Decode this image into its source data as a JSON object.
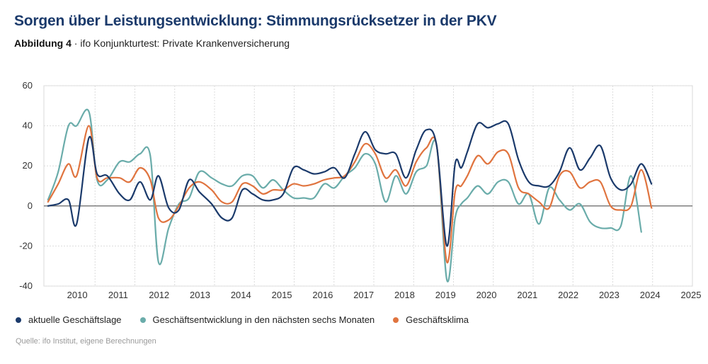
{
  "header": {
    "title": "Sorgen über Leistungsentwicklung: Stimmungsrücksetzer in der PKV",
    "figure_label": "Abbildung 4",
    "figure_separator": " · ",
    "figure_text": "ifo Konjunkturtest: Private Krankenversicherung"
  },
  "footer": {
    "source": "Quelle: ifo Institut, eigene Berechnungen"
  },
  "chart_data": {
    "type": "line",
    "title": "Sorgen über Leistungsentwicklung: Stimmungsrücksetzer in der PKV",
    "ylim": [
      -40,
      60
    ],
    "yticks": [
      -40,
      -20,
      0,
      20,
      40,
      60
    ],
    "xlim": [
      2009.65,
      2025.5
    ],
    "xtick_labels": [
      "2010",
      "2011",
      "2012",
      "2013",
      "2014",
      "2015",
      "2016",
      "2017",
      "2018",
      "2019",
      "2020",
      "2021",
      "2022",
      "2023",
      "2024",
      "2025"
    ],
    "grid": true,
    "legend_position": "bottom",
    "series": [
      {
        "name": "aktuelle Geschäftslage",
        "color": "#1b3a6b",
        "x": [
          2009.75,
          2010.0,
          2010.25,
          2010.45,
          2010.75,
          2010.95,
          2011.2,
          2011.5,
          2011.75,
          2012.0,
          2012.25,
          2012.45,
          2012.7,
          2012.95,
          2013.2,
          2013.45,
          2013.75,
          2014.0,
          2014.25,
          2014.5,
          2014.75,
          2015.0,
          2015.25,
          2015.5,
          2015.75,
          2016.0,
          2016.25,
          2016.5,
          2016.75,
          2017.0,
          2017.25,
          2017.5,
          2017.75,
          2018.0,
          2018.25,
          2018.5,
          2018.75,
          2019.0,
          2019.25,
          2019.5,
          2019.7,
          2019.85,
          2020.0,
          2020.25,
          2020.5,
          2020.75,
          2021.0,
          2021.25,
          2021.5,
          2021.75,
          2022.0,
          2022.25,
          2022.5,
          2022.75,
          2023.0,
          2023.25,
          2023.5,
          2023.75,
          2024.0,
          2024.25,
          2024.5,
          2024.75,
          2024.95
        ],
        "values": [
          0,
          1,
          3,
          -9,
          34,
          16,
          15,
          6,
          3,
          12,
          3,
          15,
          -1,
          -2,
          13,
          7,
          1,
          -6,
          -6,
          8,
          6,
          3,
          3,
          6,
          19,
          18,
          16,
          17,
          19,
          14,
          26,
          37,
          28,
          26,
          26,
          14,
          28,
          38,
          30,
          -20,
          21,
          19,
          27,
          41,
          39,
          41,
          41,
          23,
          12,
          10,
          10,
          17,
          29,
          18,
          24,
          30,
          14,
          8,
          11,
          21,
          11,
          null,
          null
        ],
        "values_end_note": ""
      },
      {
        "name": "Geschäftsentwicklung in den nächsten sechs Monaten",
        "color": "#6aacaa",
        "x": [
          2009.75,
          2010.0,
          2010.25,
          2010.45,
          2010.75,
          2010.95,
          2011.2,
          2011.5,
          2011.75,
          2012.0,
          2012.25,
          2012.45,
          2012.7,
          2012.95,
          2013.2,
          2013.45,
          2013.75,
          2014.0,
          2014.25,
          2014.5,
          2014.75,
          2015.0,
          2015.25,
          2015.5,
          2015.75,
          2016.0,
          2016.25,
          2016.5,
          2016.75,
          2017.0,
          2017.25,
          2017.5,
          2017.75,
          2018.0,
          2018.25,
          2018.5,
          2018.75,
          2019.0,
          2019.25,
          2019.5,
          2019.7,
          2019.85,
          2020.0,
          2020.25,
          2020.5,
          2020.75,
          2021.0,
          2021.25,
          2021.5,
          2021.75,
          2022.0,
          2022.25,
          2022.5,
          2022.75,
          2023.0,
          2023.25,
          2023.5,
          2023.75,
          2024.0,
          2024.25,
          2024.5,
          2024.75,
          2024.95
        ],
        "values": [
          3,
          17,
          40,
          40,
          47,
          13,
          13,
          22,
          22,
          26,
          25,
          -28,
          -11,
          1,
          4,
          17,
          14,
          11,
          10,
          15,
          15,
          9,
          13,
          8,
          4,
          4,
          4,
          11,
          9,
          15,
          19,
          26,
          21,
          2,
          15,
          6,
          17,
          20,
          30,
          -37,
          -6,
          1,
          4,
          10,
          6,
          12,
          12,
          1,
          6,
          -9,
          9,
          3,
          -2,
          1,
          -8,
          -11,
          -11,
          -10,
          15,
          -13,
          null,
          null,
          null
        ],
        "values_end_note": ""
      },
      {
        "name": "Geschäftsklima",
        "color": "#e0743f",
        "x": [
          2009.75,
          2010.0,
          2010.25,
          2010.45,
          2010.75,
          2010.95,
          2011.2,
          2011.5,
          2011.75,
          2012.0,
          2012.25,
          2012.45,
          2012.7,
          2012.95,
          2013.2,
          2013.45,
          2013.75,
          2014.0,
          2014.25,
          2014.5,
          2014.75,
          2015.0,
          2015.25,
          2015.5,
          2015.75,
          2016.0,
          2016.25,
          2016.5,
          2016.75,
          2017.0,
          2017.25,
          2017.5,
          2017.75,
          2018.0,
          2018.25,
          2018.5,
          2018.75,
          2019.0,
          2019.25,
          2019.5,
          2019.7,
          2019.85,
          2020.0,
          2020.25,
          2020.5,
          2020.75,
          2021.0,
          2021.25,
          2021.5,
          2021.75,
          2022.0,
          2022.25,
          2022.5,
          2022.75,
          2023.0,
          2023.25,
          2023.5,
          2023.75,
          2024.0,
          2024.25,
          2024.5,
          2024.75,
          2024.95
        ],
        "values": [
          2,
          11,
          21,
          15,
          40,
          14,
          14,
          14,
          12,
          19,
          13,
          -6,
          -7,
          0,
          9,
          12,
          8,
          2,
          2,
          11,
          10,
          6,
          8,
          8,
          11,
          10,
          11,
          13,
          14,
          15,
          22,
          31,
          26,
          14,
          18,
          10,
          22,
          29,
          30,
          -28,
          7,
          10,
          15,
          25,
          21,
          27,
          26,
          9,
          6,
          2,
          -1,
          15,
          17,
          9,
          12,
          12,
          0,
          -2,
          0,
          18,
          -1,
          null,
          null
        ]
      }
    ]
  }
}
